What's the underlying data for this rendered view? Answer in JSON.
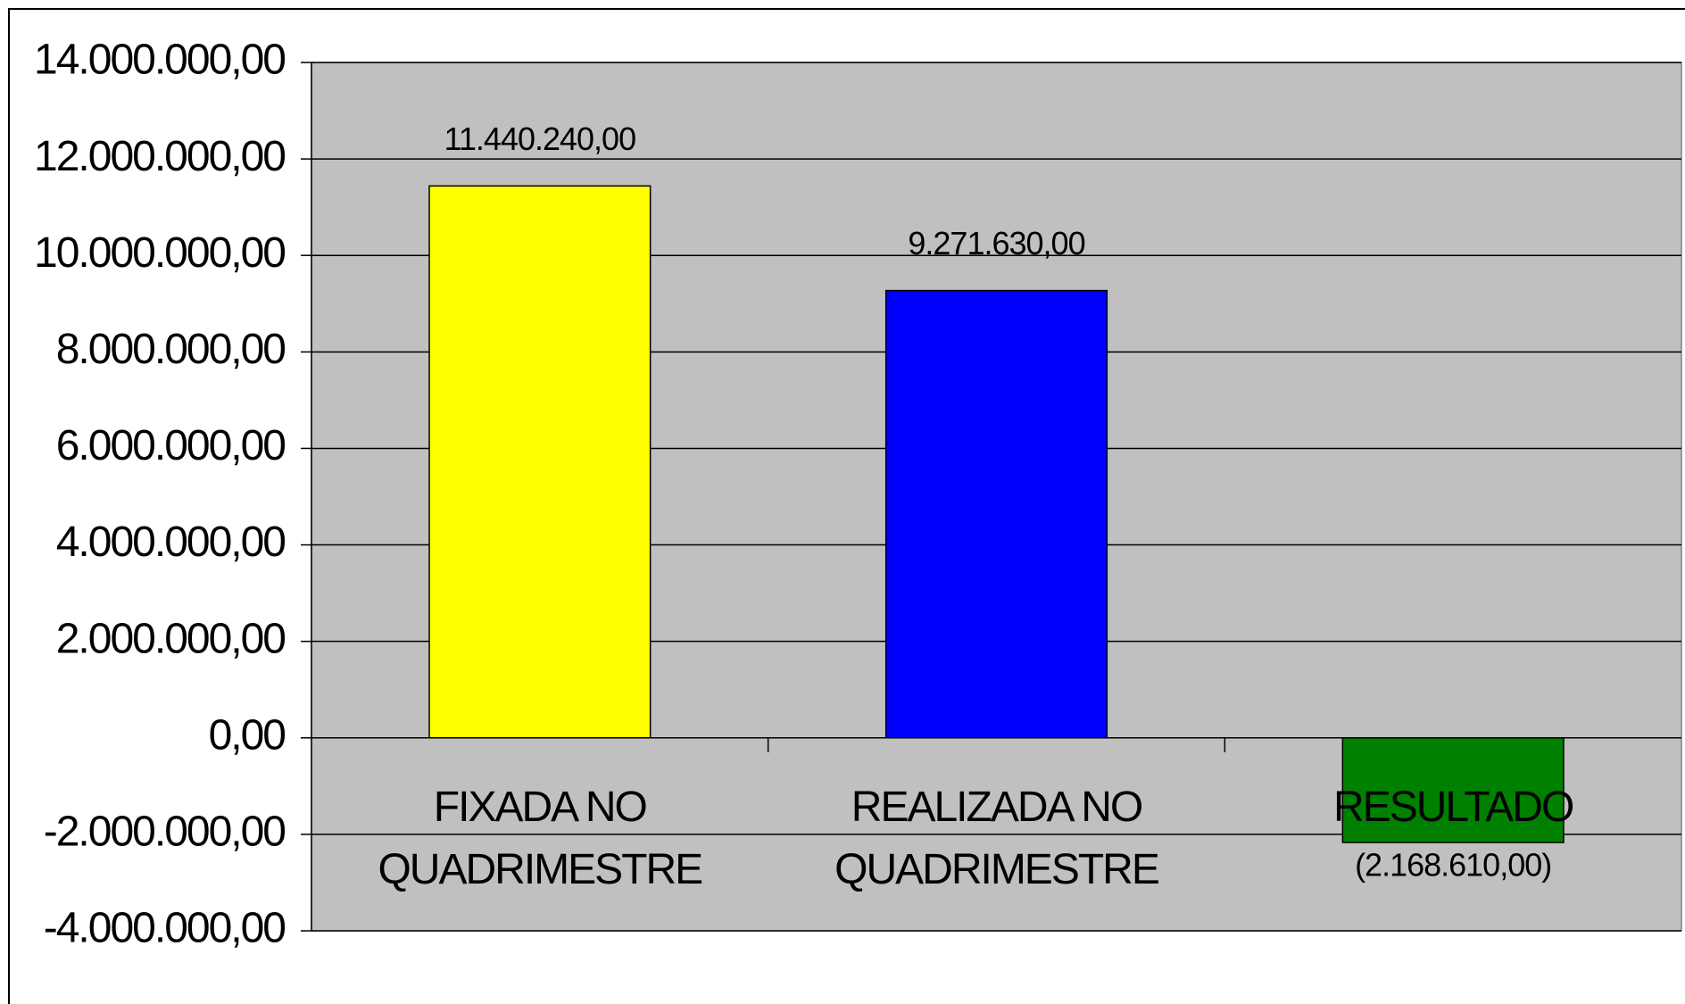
{
  "chart_data": {
    "type": "bar",
    "categories": [
      "FIXADA NO\nQUADRIMESTRE",
      "REALIZADA NO\nQUADRIMESTRE",
      "RESULTADO"
    ],
    "values": [
      11440240,
      9271630,
      -2168610
    ],
    "value_labels": [
      "11.440.240,00",
      "9.271.630,00",
      "(2.168.610,00)"
    ],
    "colors": [
      "#ffff00",
      "#0000ff",
      "#008000"
    ],
    "ylim": [
      -4000000,
      14000000
    ],
    "yticks": [
      {
        "value": -4000000,
        "label": "-4.000.000,00"
      },
      {
        "value": -2000000,
        "label": "-2.000.000,00"
      },
      {
        "value": 0,
        "label": "0,00"
      },
      {
        "value": 2000000,
        "label": "2.000.000,00"
      },
      {
        "value": 4000000,
        "label": "4.000.000,00"
      },
      {
        "value": 6000000,
        "label": "6.000.000,00"
      },
      {
        "value": 8000000,
        "label": "8.000.000,00"
      },
      {
        "value": 10000000,
        "label": "10.000.000,00"
      },
      {
        "value": 12000000,
        "label": "12.000.000,00"
      },
      {
        "value": 14000000,
        "label": "14.000.000,00"
      }
    ],
    "grid": true
  }
}
